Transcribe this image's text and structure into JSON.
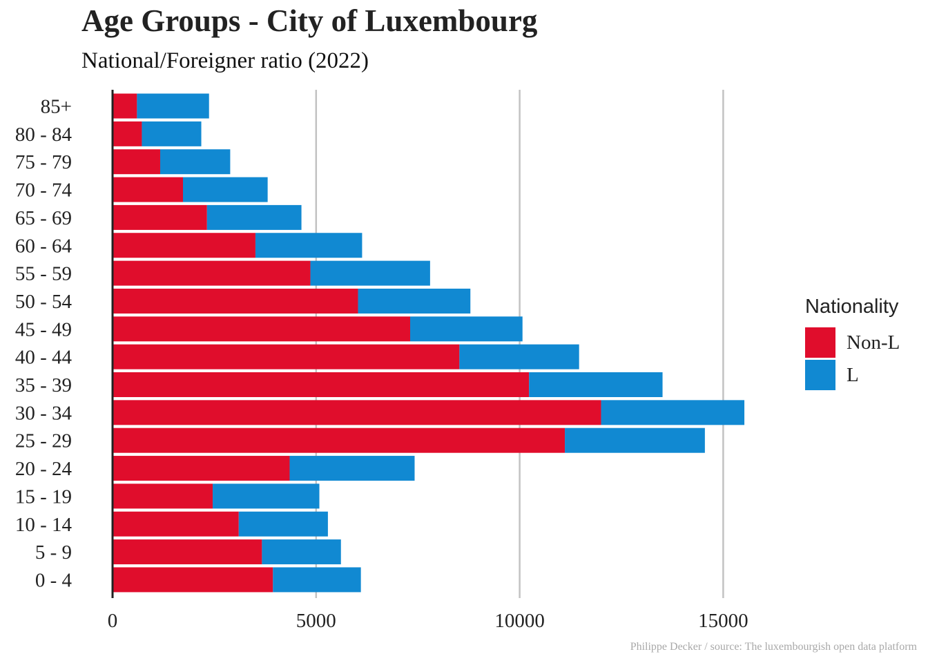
{
  "chart_data": {
    "type": "bar",
    "orientation": "horizontal",
    "stacked": true,
    "title": "Age Groups - City of Luxembourg",
    "subtitle": "National/Foreigner ratio (2022)",
    "caption": "Philippe Decker / source: The luxembourgish open data platform",
    "categories": [
      "85+",
      "80 - 84",
      "75 - 79",
      "70 - 74",
      "65 - 69",
      "60 - 64",
      "55 - 59",
      "50 - 54",
      "45 - 49",
      "40 - 44",
      "35 - 39",
      "30 - 34",
      "25 - 29",
      "20 - 24",
      "15 - 19",
      "10 - 14",
      "5 - 9",
      "0 - 4"
    ],
    "series": [
      {
        "name": "Non-L",
        "color": "#e00d2c",
        "values": [
          600,
          720,
          1170,
          1730,
          2320,
          3510,
          4860,
          6030,
          7310,
          8520,
          10230,
          12000,
          11110,
          4350,
          2460,
          3100,
          3670,
          3940
        ]
      },
      {
        "name": "L",
        "color": "#1189d2",
        "values": [
          1770,
          1460,
          1720,
          2080,
          2320,
          2620,
          2940,
          2760,
          2760,
          2940,
          3280,
          3520,
          3440,
          3070,
          2620,
          2190,
          1940,
          2160
        ]
      }
    ],
    "xlim": [
      0,
      18000
    ],
    "xticks": [
      "0",
      "5000",
      "10000",
      "15000"
    ],
    "grid": "vertical major",
    "legend": {
      "title": "Nationality",
      "position": "right"
    }
  }
}
